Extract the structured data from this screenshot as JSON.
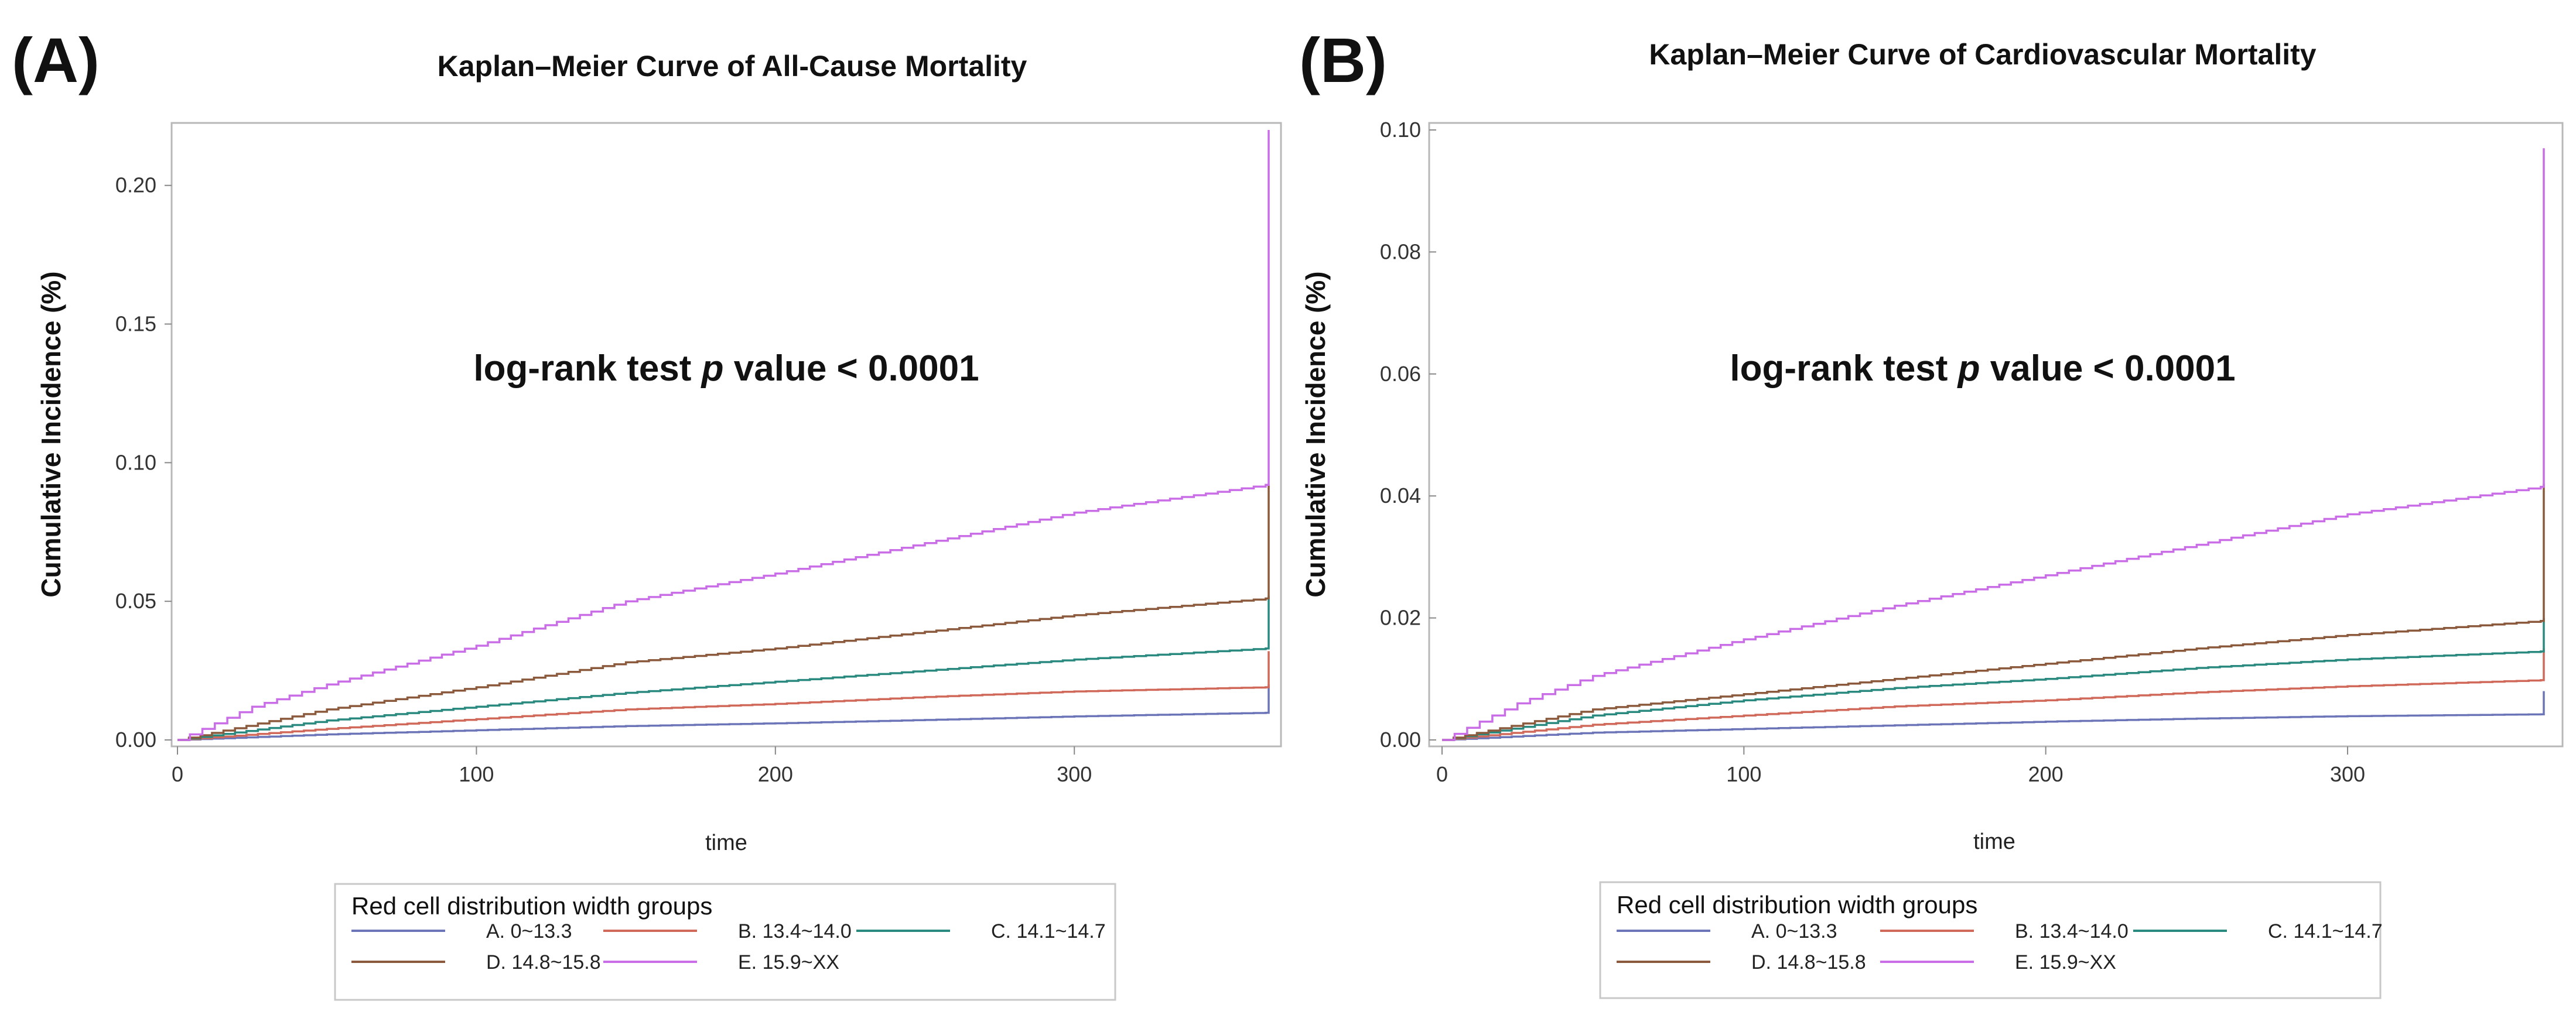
{
  "chart_data": [
    {
      "type": "line",
      "panel_label": "(A)",
      "title": "Kaplan–Meier Curve of All-Cause Mortality",
      "xlabel": "time",
      "ylabel": "Cumulative Incidence (%)",
      "xlim": [
        0,
        365
      ],
      "ylim": [
        0,
        0.22
      ],
      "xticks": [
        0,
        100,
        200,
        300
      ],
      "yticks": [
        "0.00",
        "0.05",
        "0.10",
        "0.15",
        "0.20"
      ],
      "annotation": {
        "prefix": "log-rank test ",
        "italic": "p",
        "suffix": " value < 0.0001"
      },
      "legend": {
        "title": "Red cell distribution width groups",
        "position": "bottom"
      },
      "series": [
        {
          "name": "A. 0~13.3",
          "color": "#6b75b8",
          "points": [
            [
              0,
              0
            ],
            [
              50,
              0.002
            ],
            [
              100,
              0.0035
            ],
            [
              150,
              0.005
            ],
            [
              200,
              0.006
            ],
            [
              250,
              0.0072
            ],
            [
              300,
              0.0085
            ],
            [
              364,
              0.0098
            ],
            [
              365,
              0.02
            ]
          ]
        },
        {
          "name": "B. 13.4~14.0",
          "color": "#d0695a",
          "points": [
            [
              0,
              0
            ],
            [
              50,
              0.004
            ],
            [
              100,
              0.0075
            ],
            [
              150,
              0.011
            ],
            [
              200,
              0.013
            ],
            [
              250,
              0.0155
            ],
            [
              300,
              0.0175
            ],
            [
              364,
              0.019
            ],
            [
              365,
              0.032
            ]
          ]
        },
        {
          "name": "C. 14.1~14.7",
          "color": "#2a8a80",
          "points": [
            [
              0,
              0
            ],
            [
              50,
              0.007
            ],
            [
              100,
              0.012
            ],
            [
              150,
              0.017
            ],
            [
              200,
              0.021
            ],
            [
              250,
              0.025
            ],
            [
              300,
              0.029
            ],
            [
              364,
              0.033
            ],
            [
              365,
              0.052
            ]
          ]
        },
        {
          "name": "D. 14.8~15.8",
          "color": "#8b5a3c",
          "points": [
            [
              0,
              0
            ],
            [
              50,
              0.011
            ],
            [
              100,
              0.019
            ],
            [
              150,
              0.028
            ],
            [
              200,
              0.033
            ],
            [
              250,
              0.039
            ],
            [
              300,
              0.045
            ],
            [
              364,
              0.051
            ],
            [
              365,
              0.092
            ]
          ]
        },
        {
          "name": "E. 15.9~XX",
          "color": "#c96ee6",
          "points": [
            [
              0,
              0
            ],
            [
              25,
              0.012
            ],
            [
              50,
              0.02
            ],
            [
              100,
              0.034
            ],
            [
              150,
              0.05
            ],
            [
              200,
              0.06
            ],
            [
              250,
              0.071
            ],
            [
              300,
              0.082
            ],
            [
              364,
              0.092
            ],
            [
              365,
              0.22
            ]
          ]
        }
      ]
    },
    {
      "type": "line",
      "panel_label": "(B)",
      "title": "Kaplan–Meier Curve of Cardiovascular Mortality",
      "xlabel": "time",
      "ylabel": "Cumulative Incidence (%)",
      "xlim": [
        0,
        365
      ],
      "ylim": [
        0,
        0.1
      ],
      "xticks": [
        0,
        100,
        200,
        300
      ],
      "yticks": [
        "0.00",
        "0.02",
        "0.04",
        "0.06",
        "0.08",
        "0.10"
      ],
      "annotation": {
        "prefix": "log-rank test ",
        "italic": "p",
        "suffix": " value < 0.0001"
      },
      "legend": {
        "title": "Red cell distribution width groups",
        "position": "bottom"
      },
      "series": [
        {
          "name": "A. 0~13.3",
          "color": "#6b75b8",
          "points": [
            [
              0,
              0
            ],
            [
              50,
              0.0012
            ],
            [
              100,
              0.0018
            ],
            [
              150,
              0.0024
            ],
            [
              200,
              0.003
            ],
            [
              250,
              0.0035
            ],
            [
              300,
              0.0039
            ],
            [
              364,
              0.0042
            ],
            [
              365,
              0.008
            ]
          ]
        },
        {
          "name": "B. 13.4~14.0",
          "color": "#d0695a",
          "points": [
            [
              0,
              0
            ],
            [
              50,
              0.0025
            ],
            [
              100,
              0.004
            ],
            [
              150,
              0.0055
            ],
            [
              200,
              0.0065
            ],
            [
              250,
              0.0078
            ],
            [
              300,
              0.0088
            ],
            [
              364,
              0.0098
            ],
            [
              365,
              0.015
            ]
          ]
        },
        {
          "name": "C. 14.1~14.7",
          "color": "#2a8a80",
          "points": [
            [
              0,
              0
            ],
            [
              50,
              0.004
            ],
            [
              100,
              0.0065
            ],
            [
              150,
              0.0085
            ],
            [
              200,
              0.01
            ],
            [
              250,
              0.0118
            ],
            [
              300,
              0.0132
            ],
            [
              364,
              0.0145
            ],
            [
              365,
              0.02
            ]
          ]
        },
        {
          "name": "D. 14.8~15.8",
          "color": "#8b5a3c",
          "points": [
            [
              0,
              0
            ],
            [
              50,
              0.005
            ],
            [
              100,
              0.0075
            ],
            [
              150,
              0.01
            ],
            [
              200,
              0.0125
            ],
            [
              250,
              0.015
            ],
            [
              300,
              0.0172
            ],
            [
              364,
              0.0195
            ],
            [
              365,
              0.042
            ]
          ]
        },
        {
          "name": "E. 15.9~XX",
          "color": "#c96ee6",
          "points": [
            [
              0,
              0
            ],
            [
              25,
              0.006
            ],
            [
              50,
              0.0105
            ],
            [
              100,
              0.0165
            ],
            [
              150,
              0.022
            ],
            [
              200,
              0.027
            ],
            [
              250,
              0.032
            ],
            [
              300,
              0.037
            ],
            [
              364,
              0.0415
            ],
            [
              365,
              0.097
            ]
          ]
        }
      ]
    }
  ]
}
